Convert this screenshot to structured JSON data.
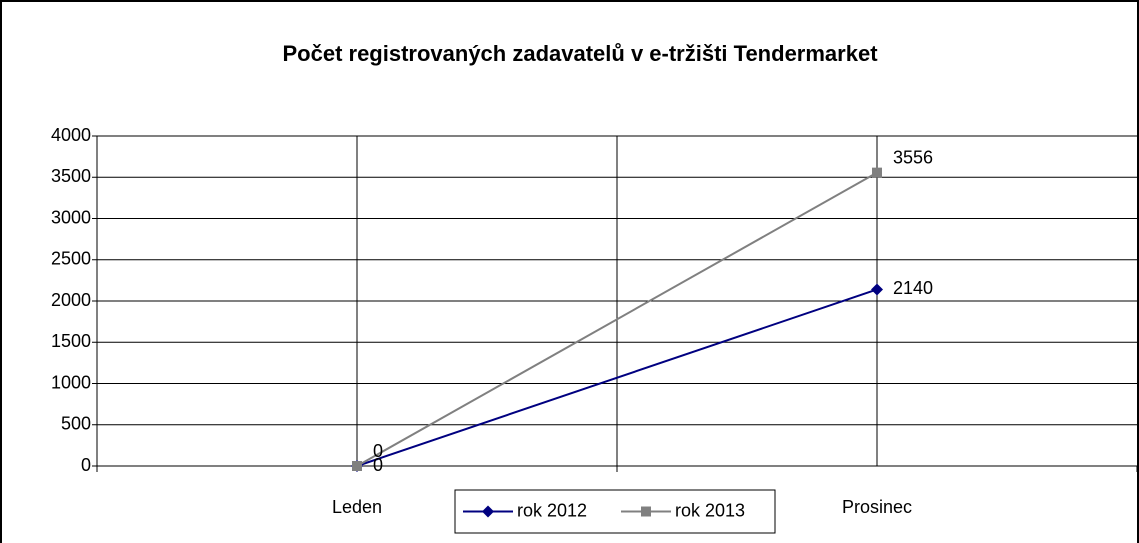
{
  "chart_data": {
    "type": "line",
    "title": "Počet registrovaných zadavatelů v e-tržišti Tendermarket",
    "categories": [
      "Leden",
      "Prosinec"
    ],
    "series": [
      {
        "name": "rok 2012",
        "color": "#000080",
        "marker": "diamond",
        "values": [
          0,
          2140
        ]
      },
      {
        "name": "rok 2013",
        "color": "#808080",
        "marker": "square",
        "values": [
          0,
          3556
        ]
      }
    ],
    "ylim": [
      0,
      4000
    ],
    "yticks": [
      0,
      500,
      1000,
      1500,
      2000,
      2500,
      3000,
      3500,
      4000
    ],
    "grid": true,
    "legend": "bottom"
  }
}
